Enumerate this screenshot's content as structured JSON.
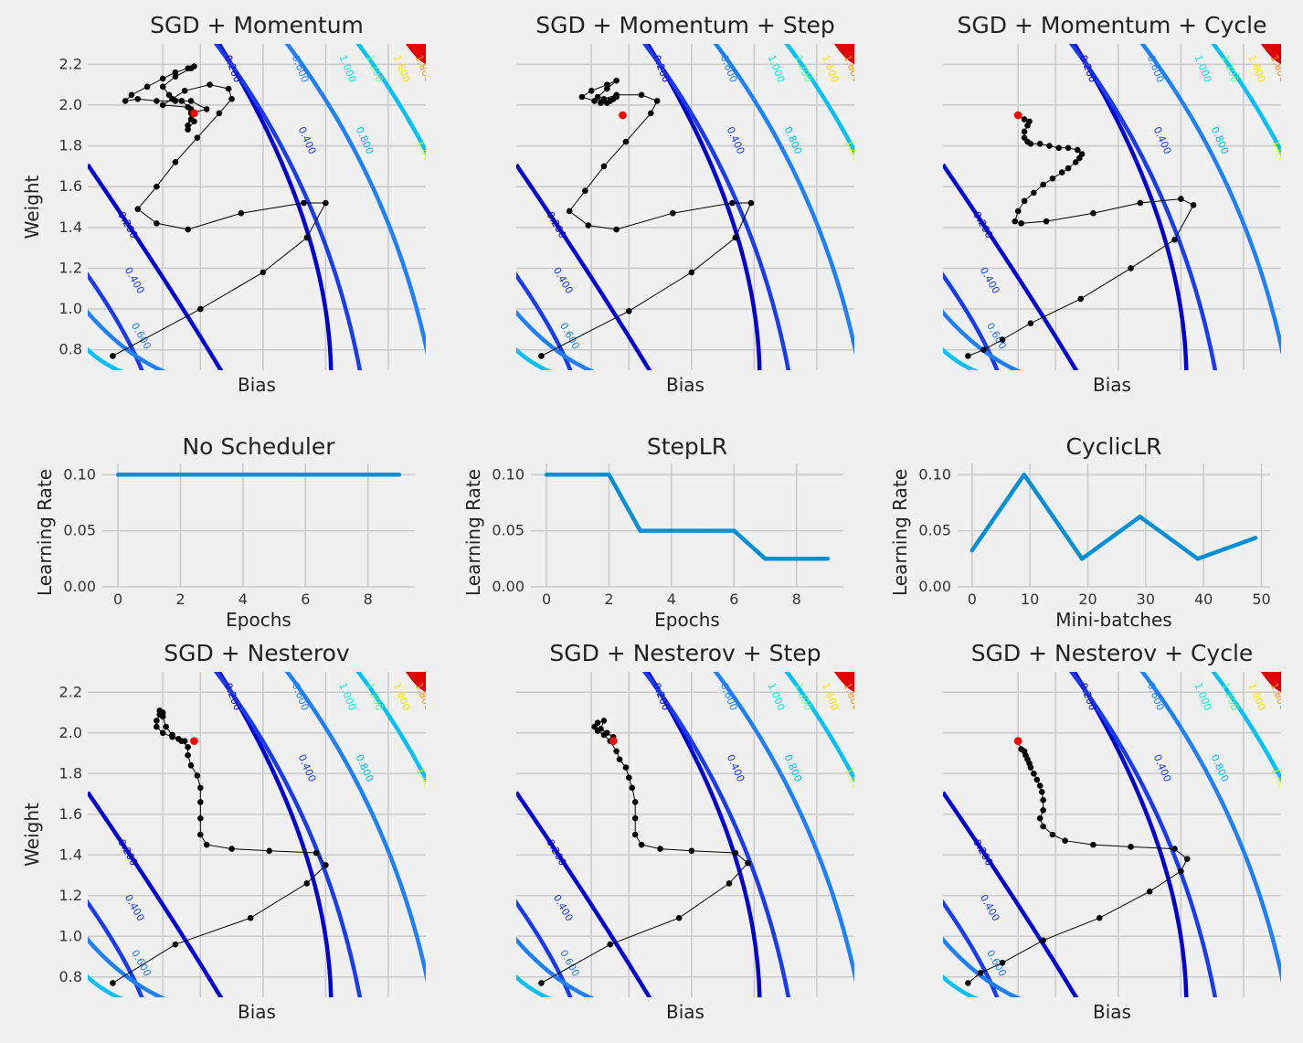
{
  "figure": {
    "background": "#f0f0f0",
    "grid_color": "#cbcbcb",
    "line_color": "#008fd5",
    "path_color": "#000000",
    "start_color": "#ff0000"
  },
  "contour": {
    "levels": [
      "0.200",
      "0.400",
      "0.600",
      "0.800",
      "1.000",
      "1.200",
      "1.400",
      "1.600",
      "1.800"
    ],
    "top_labels": [
      "0.200",
      "0.600",
      "1.000",
      "1.200",
      "1.600",
      "1.800"
    ],
    "mid_labels": [
      "0.400",
      "0.800",
      "1.400"
    ],
    "left_labels": [
      "0.200",
      "0.400",
      "0.600"
    ],
    "colors": [
      "#0000d0",
      "#1a3cf0",
      "#1f80ff",
      "#00c0ff",
      "#00f0e0",
      "#60ff90",
      "#c8ff30",
      "#ffe000",
      "#ff9000"
    ],
    "peak_color": "#e00000"
  },
  "chart_data": [
    {
      "id": "sgd-momentum",
      "type": "scatter",
      "title": "SGD + Momentum",
      "xlabel": "Bias",
      "ylabel": "Weight",
      "show_yticks": true,
      "xlim": [
        -1.8,
        3.6
      ],
      "ylim": [
        0.7,
        2.3
      ],
      "yticks": [
        "0.8",
        "1.0",
        "1.2",
        "1.4",
        "1.6",
        "1.8",
        "2.0",
        "2.2"
      ],
      "path": [
        [
          -1.4,
          0.77
        ],
        [
          0.0,
          1.0
        ],
        [
          1.0,
          1.18
        ],
        [
          1.7,
          1.35
        ],
        [
          2.0,
          1.52
        ],
        [
          1.65,
          1.52
        ],
        [
          0.65,
          1.47
        ],
        [
          -0.2,
          1.39
        ],
        [
          -0.7,
          1.42
        ],
        [
          -1.0,
          1.49
        ],
        [
          -0.7,
          1.6
        ],
        [
          -0.4,
          1.72
        ],
        [
          -0.05,
          1.84
        ],
        [
          0.3,
          1.96
        ],
        [
          0.5,
          2.03
        ],
        [
          0.45,
          2.08
        ],
        [
          0.15,
          2.1
        ],
        [
          -0.25,
          2.07
        ],
        [
          -0.45,
          2.03
        ],
        [
          -0.6,
          2.0
        ],
        [
          -0.2,
          1.99
        ],
        [
          -0.15,
          1.93
        ],
        [
          -0.2,
          1.9
        ],
        [
          -0.15,
          1.96
        ],
        [
          0.1,
          1.98
        ],
        [
          -0.15,
          2.02
        ],
        [
          -0.4,
          2.02
        ],
        [
          -0.7,
          2.02
        ],
        [
          -1.0,
          2.03
        ],
        [
          -1.2,
          2.02
        ],
        [
          -1.1,
          2.05
        ],
        [
          -0.85,
          2.09
        ],
        [
          -0.6,
          2.13
        ],
        [
          -0.4,
          2.16
        ],
        [
          -0.2,
          2.18
        ],
        [
          -0.1,
          2.19
        ],
        [
          -0.15,
          2.18
        ],
        [
          -0.4,
          2.14
        ],
        [
          -0.6,
          2.09
        ],
        [
          -0.5,
          2.05
        ],
        [
          -0.3,
          2.02
        ],
        [
          -0.15,
          1.98
        ],
        [
          -0.1,
          1.92
        ],
        [
          -0.2,
          1.88
        ]
      ],
      "start": [
        -0.1,
        1.96
      ]
    },
    {
      "id": "sgd-momentum-step",
      "type": "scatter",
      "title": "SGD + Momentum + Step",
      "xlabel": "Bias",
      "ylabel": "",
      "show_yticks": false,
      "xlim": [
        -1.8,
        3.6
      ],
      "ylim": [
        0.7,
        2.3
      ],
      "path": [
        [
          -1.4,
          0.77
        ],
        [
          0.0,
          0.99
        ],
        [
          1.0,
          1.18
        ],
        [
          1.7,
          1.35
        ],
        [
          1.95,
          1.52
        ],
        [
          1.65,
          1.52
        ],
        [
          0.7,
          1.47
        ],
        [
          -0.2,
          1.39
        ],
        [
          -0.65,
          1.41
        ],
        [
          -0.95,
          1.48
        ],
        [
          -0.7,
          1.58
        ],
        [
          -0.4,
          1.7
        ],
        [
          -0.05,
          1.82
        ],
        [
          0.35,
          1.96
        ],
        [
          0.45,
          2.02
        ],
        [
          0.2,
          2.05
        ],
        [
          -0.2,
          2.05
        ],
        [
          -0.4,
          2.03
        ],
        [
          -0.55,
          2.02
        ],
        [
          -0.75,
          2.04
        ],
        [
          -0.6,
          2.07
        ],
        [
          -0.35,
          2.1
        ],
        [
          -0.2,
          2.12
        ],
        [
          -0.35,
          2.08
        ],
        [
          -0.5,
          2.04
        ],
        [
          -0.25,
          2.03
        ],
        [
          -0.35,
          2.01
        ],
        [
          -0.45,
          2.01
        ],
        [
          -0.3,
          2.02
        ],
        [
          -0.2,
          2.04
        ]
      ],
      "start": [
        -0.1,
        1.95
      ]
    },
    {
      "id": "sgd-momentum-cycle",
      "type": "scatter",
      "title": "SGD + Momentum + Cycle",
      "xlabel": "Bias",
      "ylabel": "",
      "show_yticks": false,
      "xlim": [
        -1.8,
        3.6
      ],
      "ylim": [
        0.7,
        2.3
      ],
      "path": [
        [
          -1.4,
          0.77
        ],
        [
          -1.15,
          0.8
        ],
        [
          -0.85,
          0.85
        ],
        [
          -0.4,
          0.93
        ],
        [
          0.4,
          1.05
        ],
        [
          1.2,
          1.2
        ],
        [
          1.9,
          1.34
        ],
        [
          2.2,
          1.51
        ],
        [
          2.0,
          1.54
        ],
        [
          1.35,
          1.52
        ],
        [
          0.6,
          1.47
        ],
        [
          -0.15,
          1.43
        ],
        [
          -0.55,
          1.42
        ],
        [
          -0.65,
          1.43
        ],
        [
          -0.6,
          1.48
        ],
        [
          -0.5,
          1.53
        ],
        [
          -0.35,
          1.57
        ],
        [
          -0.2,
          1.61
        ],
        [
          -0.05,
          1.64
        ],
        [
          0.1,
          1.67
        ],
        [
          0.2,
          1.69
        ],
        [
          0.32,
          1.72
        ],
        [
          0.38,
          1.74
        ],
        [
          0.42,
          1.76
        ],
        [
          0.35,
          1.78
        ],
        [
          0.2,
          1.79
        ],
        [
          0.05,
          1.79
        ],
        [
          -0.1,
          1.8
        ],
        [
          -0.25,
          1.81
        ],
        [
          -0.4,
          1.81
        ],
        [
          -0.45,
          1.82
        ],
        [
          -0.5,
          1.84
        ],
        [
          -0.5,
          1.87
        ],
        [
          -0.45,
          1.9
        ],
        [
          -0.42,
          1.92
        ],
        [
          -0.5,
          1.93
        ],
        [
          -0.6,
          1.95
        ]
      ],
      "start": [
        -0.6,
        1.95
      ]
    },
    {
      "id": "lr-none",
      "type": "line",
      "title": "No Scheduler",
      "xlabel": "Epochs",
      "ylabel": "Learning Rate",
      "xlim": [
        -0.5,
        9.5
      ],
      "ylim": [
        0,
        0.11
      ],
      "xticks": [
        "0",
        "2",
        "4",
        "6",
        "8"
      ],
      "yticks": [
        "0.00",
        "0.05",
        "0.10"
      ],
      "x": [
        0,
        1,
        2,
        3,
        4,
        5,
        6,
        7,
        8,
        9
      ],
      "y": [
        0.1,
        0.1,
        0.1,
        0.1,
        0.1,
        0.1,
        0.1,
        0.1,
        0.1,
        0.1
      ]
    },
    {
      "id": "lr-step",
      "type": "line",
      "title": "StepLR",
      "xlabel": "Epochs",
      "ylabel": "Learning Rate",
      "xlim": [
        -0.5,
        9.5
      ],
      "ylim": [
        0,
        0.11
      ],
      "xticks": [
        "0",
        "2",
        "4",
        "6",
        "8"
      ],
      "yticks": [
        "0.00",
        "0.05",
        "0.10"
      ],
      "x": [
        0,
        1,
        2,
        3,
        4,
        5,
        6,
        7,
        8,
        9
      ],
      "y": [
        0.1,
        0.1,
        0.1,
        0.05,
        0.05,
        0.05,
        0.05,
        0.025,
        0.025,
        0.025
      ]
    },
    {
      "id": "lr-cyclic",
      "type": "line",
      "title": "CyclicLR",
      "xlabel": "Mini-batches",
      "ylabel": "Learning Rate",
      "xlim": [
        -2.5,
        51.5
      ],
      "ylim": [
        0,
        0.11
      ],
      "xticks": [
        "0",
        "10",
        "20",
        "30",
        "40",
        "50"
      ],
      "yticks": [
        "0.00",
        "0.05",
        "0.10"
      ],
      "x": [
        0,
        9,
        19,
        29,
        39,
        49
      ],
      "y": [
        0.0325,
        0.1,
        0.025,
        0.0625,
        0.025,
        0.0437
      ]
    },
    {
      "id": "sgd-nesterov",
      "type": "scatter",
      "title": "SGD + Nesterov",
      "xlabel": "Bias",
      "ylabel": "Weight",
      "show_yticks": true,
      "xlim": [
        -1.8,
        3.6
      ],
      "ylim": [
        0.7,
        2.3
      ],
      "yticks": [
        "0.8",
        "1.0",
        "1.2",
        "1.4",
        "1.6",
        "1.8",
        "2.0",
        "2.2"
      ],
      "path": [
        [
          -1.4,
          0.77
        ],
        [
          -0.4,
          0.96
        ],
        [
          0.8,
          1.09
        ],
        [
          1.7,
          1.26
        ],
        [
          2.0,
          1.35
        ],
        [
          1.85,
          1.41
        ],
        [
          1.1,
          1.42
        ],
        [
          0.5,
          1.43
        ],
        [
          0.1,
          1.45
        ],
        [
          0.0,
          1.5
        ],
        [
          0.0,
          1.58
        ],
        [
          0.0,
          1.66
        ],
        [
          0.0,
          1.73
        ],
        [
          -0.05,
          1.79
        ],
        [
          -0.15,
          1.84
        ],
        [
          -0.2,
          1.89
        ],
        [
          -0.2,
          1.93
        ],
        [
          -0.3,
          1.96
        ],
        [
          -0.45,
          1.98
        ],
        [
          -0.6,
          2.0
        ],
        [
          -0.7,
          2.03
        ],
        [
          -0.7,
          2.06
        ],
        [
          -0.65,
          2.09
        ],
        [
          -0.6,
          2.1
        ],
        [
          -0.65,
          2.11
        ],
        [
          -0.6,
          2.08
        ],
        [
          -0.55,
          2.03
        ],
        [
          -0.45,
          1.99
        ],
        [
          -0.35,
          1.97
        ],
        [
          -0.25,
          1.96
        ]
      ],
      "start": [
        -0.1,
        1.96
      ]
    },
    {
      "id": "sgd-nesterov-step",
      "type": "scatter",
      "title": "SGD + Nesterov + Step",
      "xlabel": "Bias",
      "ylabel": "",
      "show_yticks": false,
      "xlim": [
        -1.8,
        3.6
      ],
      "ylim": [
        0.7,
        2.3
      ],
      "path": [
        [
          -1.4,
          0.77
        ],
        [
          -0.3,
          0.96
        ],
        [
          0.8,
          1.09
        ],
        [
          1.6,
          1.26
        ],
        [
          1.9,
          1.36
        ],
        [
          1.7,
          1.41
        ],
        [
          1.0,
          1.42
        ],
        [
          0.5,
          1.43
        ],
        [
          0.2,
          1.45
        ],
        [
          0.1,
          1.5
        ],
        [
          0.1,
          1.58
        ],
        [
          0.1,
          1.66
        ],
        [
          0.05,
          1.73
        ],
        [
          0.0,
          1.78
        ],
        [
          -0.05,
          1.83
        ],
        [
          -0.15,
          1.87
        ],
        [
          -0.2,
          1.91
        ],
        [
          -0.3,
          1.96
        ],
        [
          -0.4,
          1.99
        ],
        [
          -0.5,
          2.01
        ],
        [
          -0.55,
          2.03
        ],
        [
          -0.5,
          2.05
        ],
        [
          -0.4,
          2.06
        ],
        [
          -0.45,
          2.02
        ],
        [
          -0.35,
          2.0
        ],
        [
          -0.25,
          1.98
        ]
      ],
      "start": [
        -0.25,
        1.96
      ]
    },
    {
      "id": "sgd-nesterov-cycle",
      "type": "scatter",
      "title": "SGD + Nesterov + Cycle",
      "xlabel": "Bias",
      "ylabel": "",
      "show_yticks": false,
      "xlim": [
        -1.8,
        3.6
      ],
      "ylim": [
        0.7,
        2.3
      ],
      "path": [
        [
          -1.4,
          0.77
        ],
        [
          -1.2,
          0.82
        ],
        [
          -0.85,
          0.87
        ],
        [
          -0.2,
          0.98
        ],
        [
          0.7,
          1.09
        ],
        [
          1.5,
          1.22
        ],
        [
          2.0,
          1.32
        ],
        [
          2.1,
          1.38
        ],
        [
          1.9,
          1.43
        ],
        [
          1.2,
          1.44
        ],
        [
          0.6,
          1.45
        ],
        [
          0.15,
          1.47
        ],
        [
          -0.05,
          1.5
        ],
        [
          -0.2,
          1.54
        ],
        [
          -0.25,
          1.58
        ],
        [
          -0.2,
          1.62
        ],
        [
          -0.2,
          1.67
        ],
        [
          -0.22,
          1.71
        ],
        [
          -0.25,
          1.74
        ],
        [
          -0.3,
          1.77
        ],
        [
          -0.35,
          1.8
        ],
        [
          -0.4,
          1.83
        ],
        [
          -0.42,
          1.85
        ],
        [
          -0.45,
          1.87
        ],
        [
          -0.48,
          1.89
        ],
        [
          -0.5,
          1.91
        ],
        [
          -0.55,
          1.92
        ],
        [
          -0.6,
          1.96
        ]
      ],
      "start": [
        -0.6,
        1.96
      ]
    }
  ]
}
